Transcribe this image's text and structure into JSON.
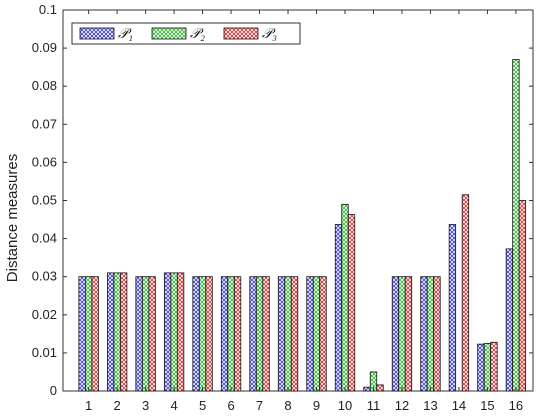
{
  "chart_data": {
    "type": "bar",
    "title": "",
    "xlabel": "",
    "ylabel": "Distance measures",
    "ylim": [
      0,
      0.1
    ],
    "yticks": [
      "0",
      "0.01",
      "0.02",
      "0.03",
      "0.04",
      "0.05",
      "0.06",
      "0.07",
      "0.08",
      "0.09",
      "0.1"
    ],
    "categories": [
      "1",
      "2",
      "3",
      "4",
      "5",
      "6",
      "7",
      "8",
      "9",
      "10",
      "11",
      "12",
      "13",
      "14",
      "15",
      "16"
    ],
    "grid": false,
    "legend_position": "top-left",
    "series": [
      {
        "name": "𝒫₁",
        "color": "#3b3bd6",
        "pattern": "crosshatch",
        "values": [
          0.03,
          0.031,
          0.03,
          0.031,
          0.03,
          0.03,
          0.03,
          0.03,
          0.03,
          0.0437,
          0.001,
          0.03,
          0.03,
          0.0437,
          0.0123,
          0.0373
        ]
      },
      {
        "name": "𝒫₂",
        "color": "#33b833",
        "pattern": "crosshatch",
        "values": [
          0.03,
          0.031,
          0.03,
          0.031,
          0.03,
          0.03,
          0.03,
          0.03,
          0.03,
          0.049,
          0.005,
          0.03,
          0.03,
          0.0,
          0.0125,
          0.087
        ]
      },
      {
        "name": "𝒫₃",
        "color": "#d63333",
        "pattern": "crosshatch",
        "values": [
          0.03,
          0.031,
          0.03,
          0.031,
          0.03,
          0.03,
          0.03,
          0.03,
          0.03,
          0.0463,
          0.0016,
          0.03,
          0.03,
          0.0515,
          0.0128,
          0.05
        ]
      }
    ]
  }
}
